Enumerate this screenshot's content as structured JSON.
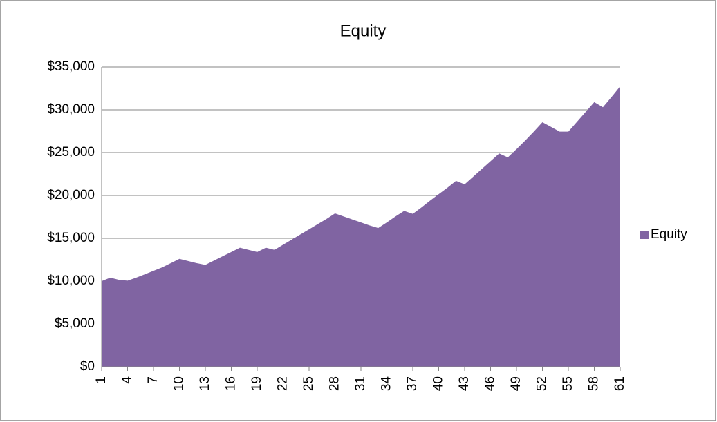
{
  "chart_data": {
    "type": "area",
    "title": "Equity",
    "categories": [
      "1",
      null,
      null,
      "4",
      null,
      null,
      "7",
      null,
      null,
      "10",
      null,
      null,
      "13",
      null,
      null,
      "16",
      null,
      null,
      "19",
      null,
      null,
      "22",
      null,
      null,
      "25",
      null,
      null,
      "28",
      null,
      null,
      "31",
      null,
      null,
      "34",
      null,
      null,
      "37",
      null,
      null,
      "40",
      null,
      null,
      "43",
      null,
      null,
      "46",
      null,
      null,
      "49",
      null,
      null,
      "52",
      null,
      null,
      "55",
      null,
      null,
      "58",
      null,
      null,
      "61"
    ],
    "series": [
      {
        "name": "Equity",
        "color": "#8064a2",
        "values": [
          10000,
          10400,
          10150,
          10050,
          10400,
          10800,
          11200,
          11600,
          12100,
          12600,
          12350,
          12100,
          11900,
          12400,
          12900,
          13400,
          13900,
          13650,
          13400,
          13900,
          13650,
          14250,
          14850,
          15450,
          16050,
          16650,
          17250,
          17900,
          17550,
          17200,
          16850,
          16500,
          16200,
          16850,
          17550,
          18200,
          17850,
          18600,
          19400,
          20150,
          20900,
          21700,
          21300,
          22200,
          23100,
          24000,
          24900,
          24450,
          25400,
          26400,
          27450,
          28550,
          28000,
          27450,
          27450,
          28600,
          29750,
          30900,
          30300,
          31500,
          32750
        ]
      }
    ],
    "ylim": [
      0,
      35000
    ],
    "yticks": [
      {
        "value": 0,
        "label": "$0"
      },
      {
        "value": 5000,
        "label": "$5,000"
      },
      {
        "value": 10000,
        "label": "$10,000"
      },
      {
        "value": 15000,
        "label": "$15,000"
      },
      {
        "value": 20000,
        "label": "$20,000"
      },
      {
        "value": 25000,
        "label": "$25,000"
      },
      {
        "value": 30000,
        "label": "$30,000"
      },
      {
        "value": 35000,
        "label": "$35,000"
      }
    ],
    "grid": true,
    "legend": "right"
  }
}
